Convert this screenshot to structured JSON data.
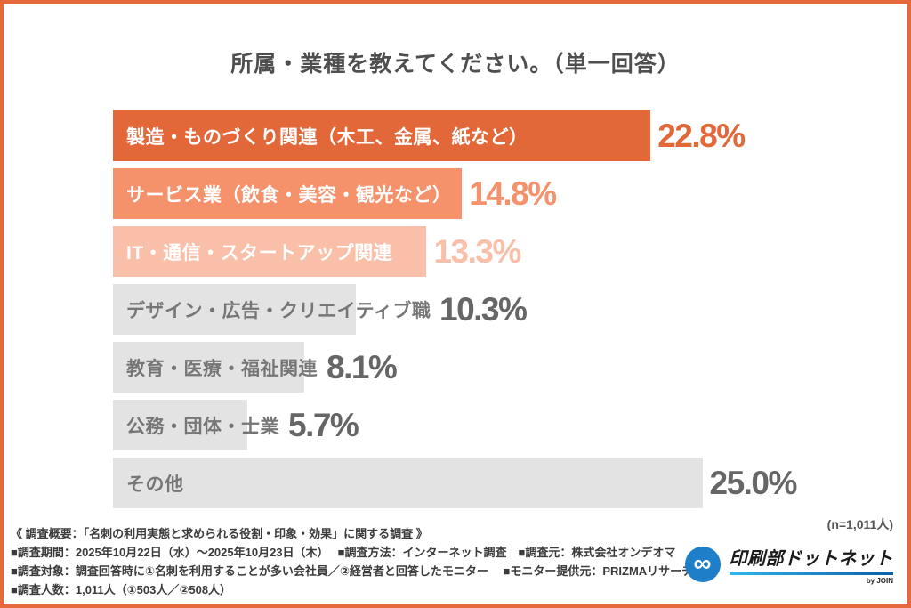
{
  "title": "所属・業種を教えてください。（単一回答）",
  "sample_note": "(n=1,011人)",
  "chart_data": {
    "type": "bar",
    "orientation": "horizontal",
    "title": "所属・業種を教えてください。（単一回答）",
    "xlim": [
      0,
      25
    ],
    "grid": false,
    "legend": false,
    "categories": [
      "製造・ものづくり関連（木工、金属、紙など）",
      "サービス業（飲食・美容・観光など）",
      "IT・通信・スタートアップ関連",
      "デザイン・広告・クリエイティブ職",
      "教育・医療・福祉関連",
      "公務・団体・士業",
      "その他"
    ],
    "values": [
      22.8,
      14.8,
      13.3,
      10.3,
      8.1,
      5.7,
      25.0
    ],
    "sample_size": "n=1,011人",
    "items": [
      {
        "label": "製造・ものづくり関連（木工、金属、紙など）",
        "value": 22.8,
        "display": "22.8%",
        "bar_color": "#E2683A",
        "label_color": "#ffffff",
        "pct_color": "#E2683A"
      },
      {
        "label": "サービス業（飲食・美容・観光など）",
        "value": 14.8,
        "display": "14.8%",
        "bar_color": "#F5926B",
        "label_color": "#ffffff",
        "pct_color": "#F5926B"
      },
      {
        "label": "IT・通信・スタートアップ関連",
        "value": 13.3,
        "display": "13.3%",
        "bar_color": "#F9BFA8",
        "label_color": "#ffffff",
        "pct_color": "#F9BFA8"
      },
      {
        "label": "デザイン・広告・クリエイティブ職",
        "value": 10.3,
        "display": "10.3%",
        "bar_color": "#E3E3E3",
        "label_color": "#767676",
        "pct_color": "#666666"
      },
      {
        "label": "教育・医療・福祉関連",
        "value": 8.1,
        "display": "8.1%",
        "bar_color": "#E3E3E3",
        "label_color": "#767676",
        "pct_color": "#666666"
      },
      {
        "label": "公務・団体・士業",
        "value": 5.7,
        "display": "5.7%",
        "bar_color": "#E3E3E3",
        "label_color": "#767676",
        "pct_color": "#666666"
      },
      {
        "label": "その他",
        "value": 25.0,
        "display": "25.0%",
        "bar_color": "#E3E3E3",
        "label_color": "#767676",
        "pct_color": "#666666"
      }
    ]
  },
  "footer": {
    "lines": [
      "《 調査概要：「名刺の利用実態と求められる役割・印象・効果」に関する調査 》",
      "■調査期間：2025年10月22日（水）～2025年10月23日（木）　 ■調査方法：インターネット調査　■調査元：株式会社オンデオマ",
      "■調査対象：調査回答時に①名刺を利用することが多い会社員／②経営者と回答したモニター　 ■モニター提供元：PRIZMAリサーチ",
      "■調査人数：1,011人（①503人／②508人）"
    ]
  },
  "logo": {
    "icon": "infinity-icon",
    "text": "印刷部ドットネット",
    "byline": "by JOIN",
    "brand_blue": "#1E7EC8"
  },
  "frame_border_color": "#E5693C"
}
